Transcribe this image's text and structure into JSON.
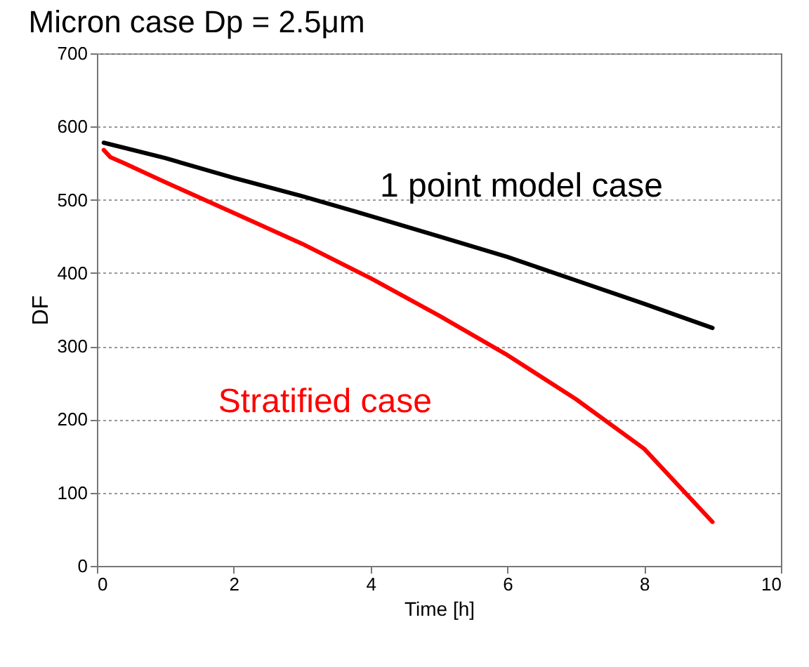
{
  "chart_data": {
    "type": "line",
    "title": "Micron case Dp = 2.5μm",
    "xlabel": "Time [h]",
    "ylabel": "DF",
    "xlim": [
      0,
      10
    ],
    "xticks": [
      0,
      2,
      4,
      6,
      8,
      10
    ],
    "ylim": [
      0,
      700
    ],
    "yticks": [
      0,
      100,
      200,
      300,
      400,
      500,
      600,
      700
    ],
    "grid": "y",
    "line_style": "solid",
    "series": [
      {
        "name": "1 point model case",
        "color": "#000000",
        "x": [
          0.1,
          1,
          2,
          3,
          4,
          5,
          6,
          7,
          8,
          9
        ],
        "values": [
          578,
          557,
          530,
          505,
          478,
          450,
          422,
          390,
          358,
          325
        ]
      },
      {
        "name": "Stratified case",
        "color": "#ff0000",
        "x": [
          0.1,
          0.2,
          0.4,
          1,
          2,
          3,
          4,
          5,
          6,
          7,
          8,
          9
        ],
        "values": [
          568,
          558,
          550,
          524,
          482,
          440,
          393,
          342,
          288,
          228,
          160,
          60
        ]
      }
    ]
  }
}
